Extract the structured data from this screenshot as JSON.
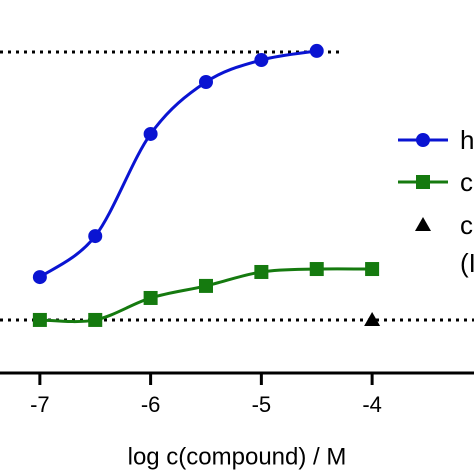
{
  "chart_data": {
    "type": "line",
    "x_label": "log c(compound) / M",
    "xlim": [
      -7.36,
      -3.08
    ],
    "xticks": [
      -7,
      -6,
      -5,
      -4
    ],
    "ylim": [
      -19.8,
      119.4
    ],
    "reference_lines": [
      0,
      100
    ],
    "series": [
      {
        "name": "h",
        "color": "#0a14d2",
        "marker": "circle",
        "x": [
          -7,
          -6.5,
          -6,
          -5.5,
          -5,
          -4.5
        ],
        "values": [
          16,
          31.3,
          69.4,
          88.8,
          97,
          100.4
        ]
      },
      {
        "name": "c",
        "color": "#157a0f",
        "marker": "square",
        "x": [
          -7,
          -6.5,
          -6,
          -5.5,
          -5,
          -4.5,
          -4
        ],
        "values": [
          0,
          0,
          8.2,
          12.7,
          17.9,
          19,
          19
        ]
      },
      {
        "name": "c",
        "name_line2": "(I",
        "color": "#000000",
        "marker": "triangle",
        "x": [
          -4
        ],
        "values": [
          0
        ]
      }
    ]
  }
}
